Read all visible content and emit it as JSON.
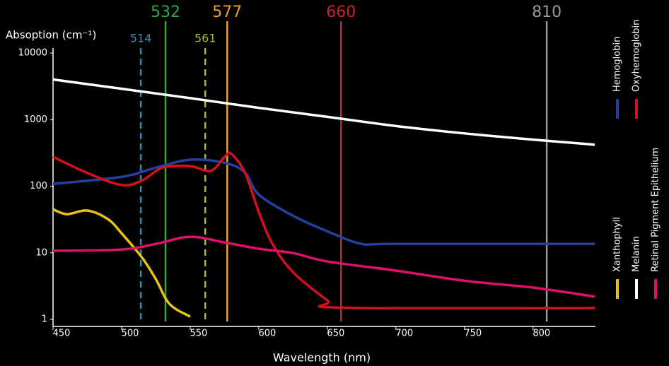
{
  "chart_data": {
    "type": "line",
    "y_label": "Absoption (cm⁻¹)",
    "x_label": "Wavelength (nm)",
    "log_y": true,
    "xlim": [
      450,
      845
    ],
    "ylim": [
      1,
      10000
    ],
    "xticks": [
      450,
      500,
      550,
      600,
      650,
      700,
      750,
      800
    ],
    "yticks": [
      10000,
      1000,
      100,
      10,
      1
    ],
    "markers": [
      {
        "value": 514,
        "color": "#3a8fa8",
        "dashed": true
      },
      {
        "value": 532,
        "color": "#2fa84c",
        "dashed": false
      },
      {
        "value": 561,
        "color": "#a8b83a",
        "dashed": true
      },
      {
        "value": 577,
        "color": "#e8a030",
        "dashed": false
      },
      {
        "value": 660,
        "color": "#c0282a",
        "dashed": false
      },
      {
        "value": 810,
        "color": "#9a9a9a",
        "dashed": false
      }
    ],
    "series": [
      {
        "name": "Hemoglobin",
        "color": "#2540a0",
        "x": [
          450,
          500,
          525,
          550,
          575,
          590,
          600,
          625,
          650,
          675,
          700,
          845
        ],
        "values": [
          108,
          138,
          190,
          250,
          225,
          160,
          75,
          36,
          21,
          13.6,
          13.6,
          13.6
        ]
      },
      {
        "name": "Oxyhemoglobin",
        "color": "#d4101c",
        "x": [
          450,
          475,
          500,
          515,
          530,
          550,
          565,
          575,
          580,
          590,
          600,
          610,
          625,
          650,
          660,
          845
        ],
        "values": [
          275,
          158,
          104,
          122,
          190,
          200,
          170,
          275,
          305,
          158,
          41,
          13.6,
          5.1,
          1.93,
          1.5,
          1.48
        ]
      },
      {
        "name": "Xanthophyll",
        "color": "#e8c21a",
        "x": [
          450,
          460,
          475,
          490,
          500,
          515,
          525,
          535,
          550
        ],
        "values": [
          45,
          38,
          43,
          32,
          19.6,
          8.4,
          4.0,
          1.7,
          1.1
        ]
      },
      {
        "name": "Melanin",
        "color": "#ffffff",
        "x": [
          450,
          500,
          550,
          600,
          650,
          700,
          750,
          800,
          845
        ],
        "values": [
          4000,
          2900,
          2100,
          1500,
          1100,
          800,
          620,
          500,
          420
        ]
      },
      {
        "name": "Retinal Pigment Epithelium",
        "color": "#e0106a",
        "x": [
          450,
          500,
          525,
          550,
          575,
          600,
          625,
          650,
          700,
          750,
          800,
          845
        ],
        "values": [
          10.7,
          11.2,
          13.6,
          17.4,
          14.3,
          11.5,
          9.9,
          7.4,
          5.4,
          3.8,
          3.0,
          2.2
        ]
      }
    ]
  }
}
